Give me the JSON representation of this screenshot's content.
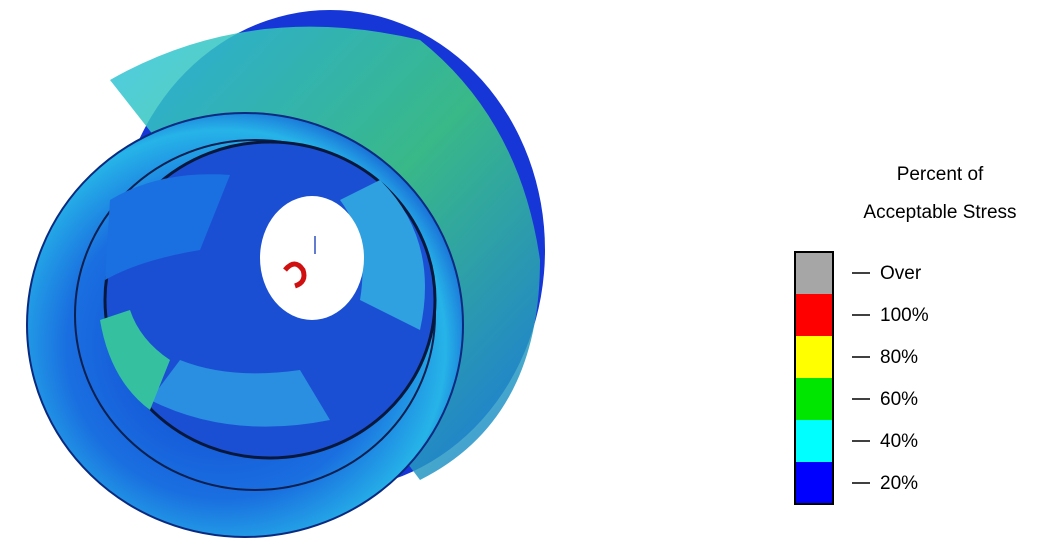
{
  "legend": {
    "title": [
      "Percent of",
      "Acceptable Stress"
    ],
    "entries": [
      {
        "label": "Over",
        "color": "#a6a6a6"
      },
      {
        "label": "100%",
        "color": "#ff0000"
      },
      {
        "label": "80%",
        "color": "#ffff00"
      },
      {
        "label": "60%",
        "color": "#00e600"
      },
      {
        "label": "40%",
        "color": "#00ffff"
      },
      {
        "label": "20%",
        "color": "#0000ff"
      }
    ]
  }
}
